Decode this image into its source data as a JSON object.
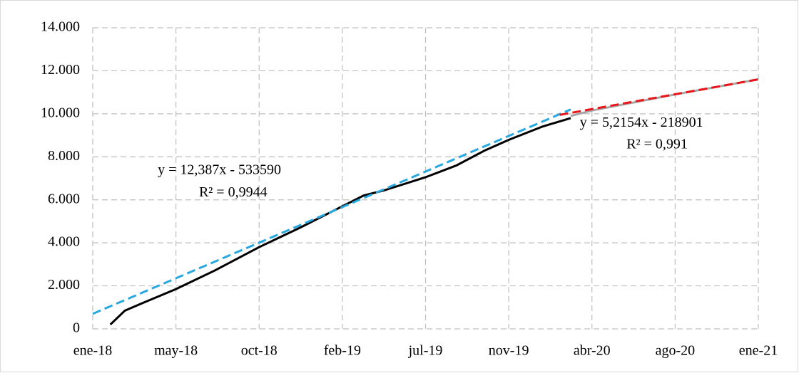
{
  "chart_data": {
    "type": "line",
    "xlim": [
      43101,
      44197
    ],
    "xticks": [
      {
        "value": 43101,
        "label": "ene-18"
      },
      {
        "value": 43238,
        "label": "may-18"
      },
      {
        "value": 43375,
        "label": "oct-18"
      },
      {
        "value": 43512,
        "label": "feb-19"
      },
      {
        "value": 43649,
        "label": "jul-19"
      },
      {
        "value": 43786,
        "label": "nov-19"
      },
      {
        "value": 43923,
        "label": "abr-20"
      },
      {
        "value": 44060,
        "label": "ago-20"
      },
      {
        "value": 44197,
        "label": "ene-21"
      }
    ],
    "ylim": [
      0,
      14000
    ],
    "yticks": [
      0,
      {
        "value": 2000,
        "label": "2.000"
      },
      {
        "value": 4000,
        "label": "4.000"
      },
      {
        "value": 6000,
        "label": "6.000"
      },
      {
        "value": 8000,
        "label": "8.000"
      },
      {
        "value": 10000,
        "label": "10.000"
      },
      {
        "value": 12000,
        "label": "12.000"
      },
      {
        "value": 14000,
        "label": "14.000"
      }
    ],
    "grid": true,
    "series": [
      {
        "color": "#a6a6a6",
        "dashed": false,
        "x": [
          43888,
          43923,
          44060,
          44197
        ],
        "values": [
          9900,
          10150,
          10900,
          11600
        ]
      },
      {
        "color": "#000000",
        "dashed": false,
        "x": [
          43130,
          43154,
          43183,
          43238,
          43301,
          43375,
          43442,
          43512,
          43547,
          43582,
          43649,
          43700,
          43747,
          43787,
          43841,
          43888
        ],
        "values": [
          200,
          850,
          1200,
          1850,
          2700,
          3800,
          4700,
          5700,
          6200,
          6450,
          7050,
          7600,
          8300,
          8800,
          9400,
          9800
        ]
      },
      {
        "color": "#29a8e0",
        "dashed": true,
        "x": [
          43101,
          43888
        ],
        "values": [
          700,
          10200
        ]
      },
      {
        "color": "#e8161a",
        "dashed": true,
        "x": [
          43870,
          44197
        ],
        "values": [
          9950,
          11600
        ]
      }
    ],
    "annotations": [
      {
        "text": "y = 12,387x - 533590",
        "x": 43208,
        "y": 7350
      },
      {
        "text": "R² = 0,9944",
        "x": 43276,
        "y": 6300
      },
      {
        "text": "y = 5,2154x - 218901",
        "x": 43903,
        "y": 9550
      },
      {
        "text": "R² = 0,991",
        "x": 43980,
        "y": 8550
      }
    ]
  }
}
